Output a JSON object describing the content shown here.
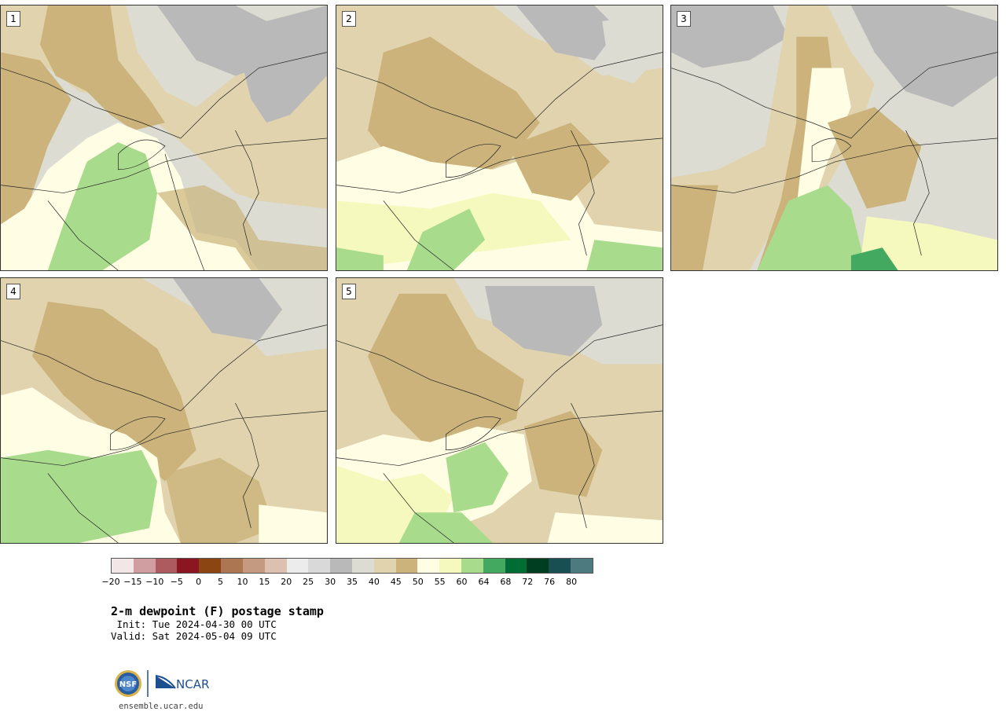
{
  "panels": [
    {
      "label": "1"
    },
    {
      "label": "2"
    },
    {
      "label": "3"
    },
    {
      "label": "4"
    },
    {
      "label": "5"
    }
  ],
  "colorbar": {
    "colors": [
      "#f2e6e6",
      "#d09da0",
      "#ad5b5e",
      "#8a1621",
      "#8a4513",
      "#ad7652",
      "#c49a81",
      "#dcc0b0",
      "#ececec",
      "#d9d9d9",
      "#b9b9b9",
      "#dcdcd2",
      "#e0d3ad",
      "#cbb37b",
      "#fffee4",
      "#f6f9bd",
      "#a8dc8c",
      "#43a860",
      "#006d35",
      "#003e22",
      "#174f52",
      "#4d7a7e"
    ],
    "ticks": [
      "−20",
      "−15",
      "−10",
      "−5",
      "0",
      "5",
      "10",
      "15",
      "20",
      "25",
      "30",
      "35",
      "40",
      "45",
      "50",
      "55",
      "60",
      "64",
      "68",
      "72",
      "76",
      "80"
    ]
  },
  "title": "2-m dewpoint (F) postage stamp",
  "init": " Init: Tue 2024-04-30 00 UTC",
  "valid": "Valid: Sat 2024-05-04 09 UTC",
  "logo": {
    "nsf_text": "NSF",
    "ncar_text": "NCAR"
  },
  "url": "ensemble.ucar.edu"
}
